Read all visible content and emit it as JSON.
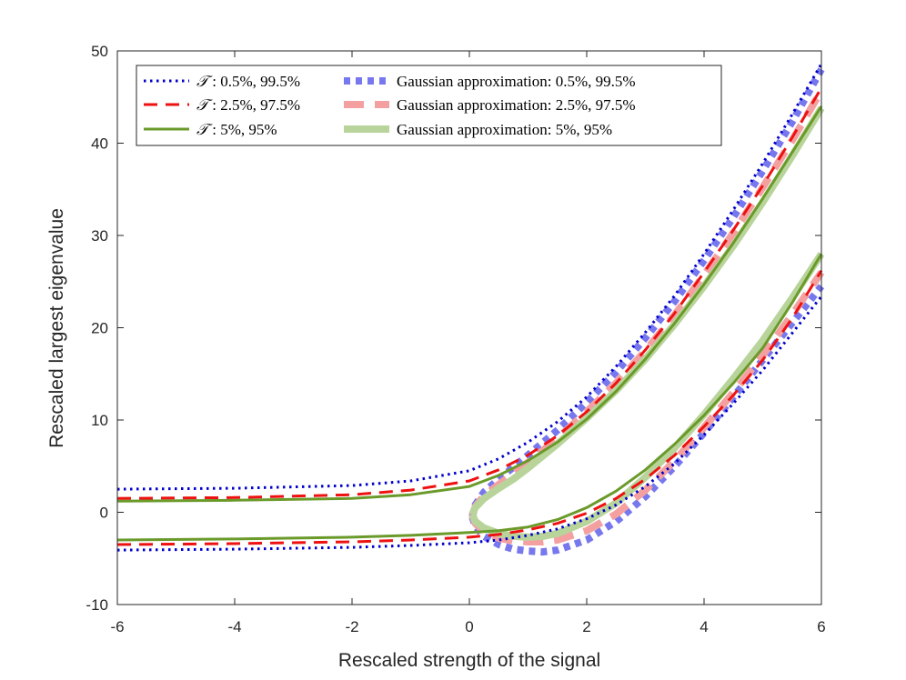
{
  "chart_data": {
    "type": "line",
    "xlabel": "Rescaled strength of the signal",
    "ylabel": "Rescaled largest eigenvalue",
    "xlim": [
      -6,
      6
    ],
    "ylim": [
      -10,
      50
    ],
    "xticks": [
      -6,
      -4,
      -2,
      0,
      2,
      4,
      6
    ],
    "yticks": [
      -10,
      0,
      10,
      20,
      30,
      40,
      50
    ],
    "xtick_labels": [
      "-6",
      "-4",
      "-2",
      "0",
      "2",
      "4",
      "6"
    ],
    "ytick_labels": [
      "-10",
      "0",
      "10",
      "20",
      "30",
      "40",
      "50"
    ],
    "grid": false,
    "legend_position": "top-left",
    "colors": {
      "blue": "#0000cc",
      "red": "#ee1111",
      "green": "#6a9a2a",
      "gauss_blue": "#7777ee",
      "gauss_red": "#f4a0a0",
      "gauss_green": "#b8d49a"
    },
    "legend": [
      {
        "symbol": "𝒯",
        "text": ":  0.5%, 99.5%",
        "series": "T_05"
      },
      {
        "symbol": "𝒯",
        "text": ":  2.5%, 97.5%",
        "series": "T_25"
      },
      {
        "symbol": "𝒯",
        "text": ":  5%, 95%",
        "series": "T_5"
      },
      {
        "symbol": "",
        "text": "Gaussian approximation: 0.5%, 99.5%",
        "series": "G_05"
      },
      {
        "symbol": "",
        "text": "Gaussian approximation: 2.5%, 97.5%",
        "series": "G_25"
      },
      {
        "symbol": "",
        "text": "Gaussian approximation: 5%, 95%",
        "series": "G_5"
      }
    ],
    "series": [
      {
        "id": "T_05",
        "color": "blue",
        "style": "dotted",
        "upper": {
          "x": [
            -6,
            -4,
            -2,
            -1,
            0,
            0.5,
            1,
            1.5,
            2,
            2.5,
            3,
            3.5,
            4,
            4.5,
            5,
            5.5,
            6
          ],
          "y": [
            2.5,
            2.6,
            2.9,
            3.4,
            4.5,
            5.8,
            7.6,
            9.8,
            12.5,
            15.8,
            19.5,
            23.5,
            28.0,
            32.8,
            37.8,
            43.1,
            48.6
          ]
        },
        "lower": {
          "x": [
            -6,
            -4,
            -2,
            -1,
            0,
            0.5,
            1,
            1.5,
            2,
            2.5,
            3,
            3.5,
            4,
            4.5,
            5,
            5.5,
            6
          ],
          "y": [
            -4.1,
            -4.0,
            -3.8,
            -3.6,
            -3.3,
            -3.0,
            -2.5,
            -1.8,
            -0.7,
            0.8,
            2.8,
            5.3,
            8.4,
            11.8,
            15.4,
            19.4,
            23.4
          ]
        }
      },
      {
        "id": "T_25",
        "color": "red",
        "style": "dashed",
        "upper": {
          "x": [
            -6,
            -4,
            -2,
            -1,
            0,
            0.5,
            1,
            1.5,
            2,
            2.5,
            3,
            3.5,
            4,
            4.5,
            5,
            5.5,
            6
          ],
          "y": [
            1.5,
            1.6,
            1.9,
            2.4,
            3.4,
            4.6,
            6.2,
            8.3,
            10.9,
            14.0,
            17.6,
            21.6,
            26.0,
            30.6,
            35.4,
            40.6,
            46.0
          ]
        },
        "lower": {
          "x": [
            -6,
            -4,
            -2,
            -1,
            0,
            0.5,
            1,
            1.5,
            2,
            2.5,
            3,
            3.5,
            4,
            4.5,
            5,
            5.5,
            6
          ],
          "y": [
            -3.5,
            -3.4,
            -3.2,
            -3.0,
            -2.7,
            -2.4,
            -1.9,
            -1.2,
            -0.1,
            1.5,
            3.6,
            6.2,
            9.3,
            12.7,
            16.5,
            21.0,
            26.2
          ]
        }
      },
      {
        "id": "T_5",
        "color": "green",
        "style": "solid",
        "upper": {
          "x": [
            -6,
            -4,
            -2,
            -1,
            0,
            0.5,
            1,
            1.5,
            2,
            2.5,
            3,
            3.5,
            4,
            4.5,
            5,
            5.5,
            6
          ],
          "y": [
            1.2,
            1.3,
            1.5,
            1.9,
            2.8,
            4.0,
            5.6,
            7.6,
            10.1,
            13.1,
            16.6,
            20.5,
            24.7,
            29.2,
            34.0,
            39.0,
            44.0
          ]
        },
        "lower": {
          "x": [
            -6,
            -4,
            -2,
            -1,
            0,
            0.5,
            1,
            1.5,
            2,
            2.5,
            3,
            3.5,
            4,
            4.5,
            5,
            5.5,
            6
          ],
          "y": [
            -3.0,
            -2.9,
            -2.7,
            -2.5,
            -2.2,
            -2.0,
            -1.6,
            -0.8,
            0.5,
            2.3,
            4.6,
            7.4,
            10.5,
            14.0,
            17.8,
            22.7,
            28.0
          ]
        }
      },
      {
        "id": "G_05",
        "color": "gauss_blue",
        "style": "thick-dotted",
        "upper": {
          "x": [
            0.05,
            0.1,
            0.25,
            0.5,
            0.75,
            1,
            1.5,
            2,
            2.5,
            3,
            3.5,
            4,
            4.5,
            5,
            5.5,
            6
          ],
          "y": [
            -0.5,
            0.8,
            2.2,
            3.6,
            4.9,
            6.2,
            8.9,
            11.9,
            15.2,
            18.9,
            22.9,
            27.3,
            32.0,
            37.0,
            42.3,
            48.0
          ]
        },
        "lower": {
          "x": [
            0.05,
            0.1,
            0.25,
            0.5,
            0.75,
            1,
            1.25,
            1.5,
            2,
            2.5,
            3,
            3.5,
            4,
            4.5,
            5,
            5.5,
            6
          ],
          "y": [
            -0.5,
            -1.5,
            -2.6,
            -3.5,
            -4.0,
            -4.2,
            -4.3,
            -4.1,
            -3.0,
            -1.0,
            1.7,
            5.0,
            8.6,
            12.5,
            16.5,
            20.5,
            24.5
          ]
        }
      },
      {
        "id": "G_25",
        "color": "gauss_red",
        "style": "thick-dashed",
        "upper": {
          "x": [
            0.05,
            0.1,
            0.25,
            0.5,
            0.75,
            1,
            1.5,
            2,
            2.5,
            3,
            3.5,
            4,
            4.5,
            5,
            5.5,
            6
          ],
          "y": [
            -0.3,
            0.6,
            1.8,
            3.0,
            4.2,
            5.4,
            8.0,
            10.9,
            14.0,
            17.5,
            21.4,
            25.7,
            30.3,
            35.2,
            40.3,
            45.7
          ]
        },
        "lower": {
          "x": [
            0.05,
            0.1,
            0.25,
            0.5,
            0.75,
            1,
            1.25,
            1.5,
            2,
            2.5,
            3,
            3.5,
            4,
            4.5,
            5,
            5.5,
            6
          ],
          "y": [
            -0.3,
            -1.2,
            -2.1,
            -2.8,
            -3.1,
            -3.2,
            -3.2,
            -3.0,
            -2.0,
            -0.2,
            2.4,
            5.6,
            9.2,
            13.0,
            17.0,
            21.4,
            26.0
          ]
        }
      },
      {
        "id": "G_5",
        "color": "gauss_green",
        "style": "thick-solid",
        "upper": {
          "x": [
            0.05,
            0.1,
            0.25,
            0.5,
            0.75,
            1,
            1.5,
            2,
            2.5,
            3,
            3.5,
            4,
            4.5,
            5,
            5.5,
            6
          ],
          "y": [
            -0.2,
            0.5,
            1.5,
            2.6,
            3.6,
            4.8,
            7.4,
            10.2,
            13.2,
            16.6,
            20.4,
            24.5,
            28.9,
            33.6,
            38.6,
            43.8
          ]
        },
        "lower": {
          "x": [
            0.05,
            0.1,
            0.25,
            0.5,
            0.75,
            1,
            1.25,
            1.5,
            2,
            2.5,
            3,
            3.5,
            4,
            4.5,
            5,
            5.5,
            6
          ],
          "y": [
            -0.2,
            -1.0,
            -1.7,
            -2.3,
            -2.6,
            -2.7,
            -2.6,
            -2.3,
            -1.0,
            1.0,
            3.8,
            7.0,
            10.6,
            14.5,
            18.6,
            23.2,
            28.0
          ]
        }
      }
    ]
  }
}
